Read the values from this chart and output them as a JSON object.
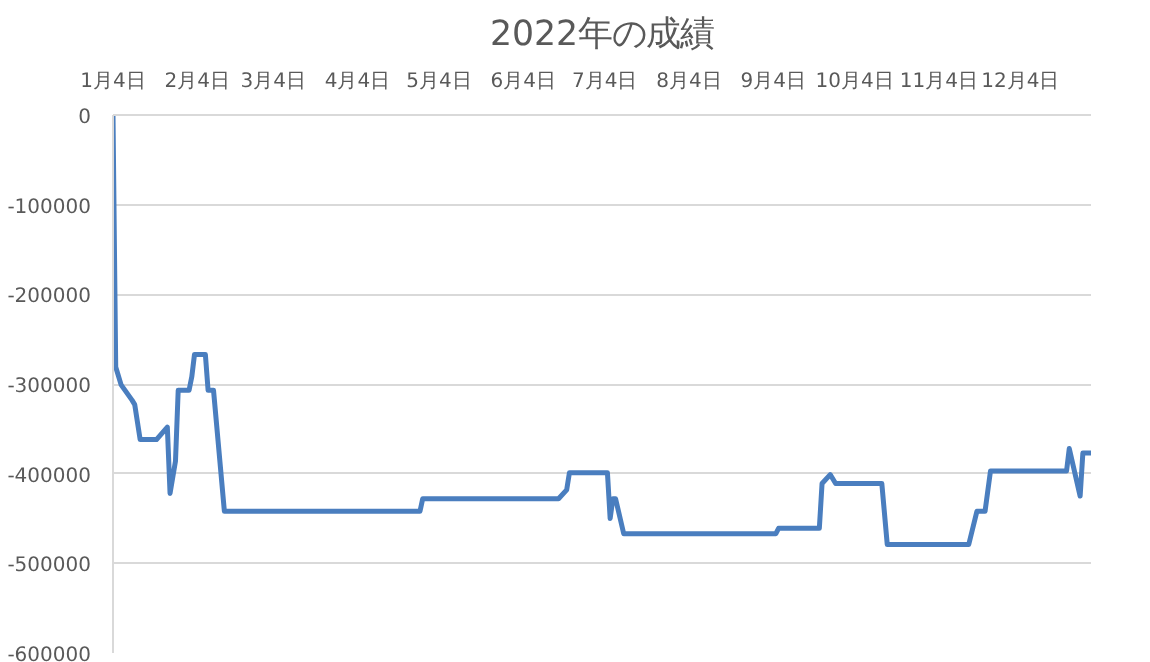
{
  "chart_data": {
    "type": "line",
    "title": "2022年の成績",
    "x": [
      "2022-01-04",
      "2022-01-05",
      "2022-01-07",
      "2022-01-11",
      "2022-01-12",
      "2022-01-14",
      "2022-01-20",
      "2022-01-24",
      "2022-01-25",
      "2022-01-27",
      "2022-01-28",
      "2022-02-01",
      "2022-02-02",
      "2022-02-03",
      "2022-02-07",
      "2022-02-08",
      "2022-02-10",
      "2022-02-14",
      "2022-04-27",
      "2022-04-28",
      "2022-06-17",
      "2022-06-20",
      "2022-06-21",
      "2022-07-05",
      "2022-07-06",
      "2022-07-07",
      "2022-07-08",
      "2022-07-11",
      "2022-09-05",
      "2022-09-06",
      "2022-09-21",
      "2022-09-22",
      "2022-09-25",
      "2022-09-27",
      "2022-10-14",
      "2022-10-16",
      "2022-11-15",
      "2022-11-18",
      "2022-11-21",
      "2022-11-23",
      "2022-12-21",
      "2022-12-22",
      "2022-12-26",
      "2022-12-27",
      "2022-12-30"
    ],
    "series": [
      {
        "color": "#4a7ebf",
        "values": [
          0,
          -281000,
          -301000,
          -318000,
          -323000,
          -362000,
          -362000,
          -348000,
          -422000,
          -386000,
          -307000,
          -307000,
          -292000,
          -267000,
          -267000,
          -307000,
          -307000,
          -442000,
          -442000,
          -428000,
          -428000,
          -418000,
          -399000,
          -399000,
          -450000,
          -428000,
          -428000,
          -467000,
          -467000,
          -461000,
          -461000,
          -411000,
          -401000,
          -411000,
          -411000,
          -479000,
          -479000,
          -442000,
          -442000,
          -397000,
          -397000,
          -372000,
          -425000,
          -377000,
          -377000
        ]
      }
    ],
    "xlim": [
      "2022-01-04",
      "2022-12-30"
    ],
    "xticks": [
      {
        "value": "2022-01-04",
        "label": "1月4日"
      },
      {
        "value": "2022-02-04",
        "label": "2月4日"
      },
      {
        "value": "2022-03-04",
        "label": "3月4日"
      },
      {
        "value": "2022-04-04",
        "label": "4月4日"
      },
      {
        "value": "2022-05-04",
        "label": "5月4日"
      },
      {
        "value": "2022-06-04",
        "label": "6月4日"
      },
      {
        "value": "2022-07-04",
        "label": "7月4日"
      },
      {
        "value": "2022-08-04",
        "label": "8月4日"
      },
      {
        "value": "2022-09-04",
        "label": "9月4日"
      },
      {
        "value": "2022-10-04",
        "label": "10月4日"
      },
      {
        "value": "2022-11-04",
        "label": "11月4日"
      },
      {
        "value": "2022-12-04",
        "label": "12月4日"
      }
    ],
    "ylim": [
      -600000,
      0
    ],
    "yticks": [
      0,
      -100000,
      -200000,
      -300000,
      -400000,
      -500000,
      -600000
    ],
    "grid": "y",
    "line_style": "solid",
    "marker": "none"
  }
}
